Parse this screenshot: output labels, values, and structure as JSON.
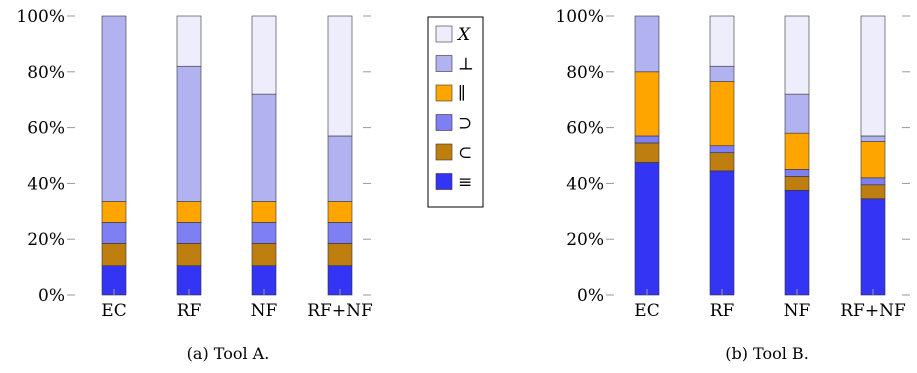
{
  "legend": {
    "items": [
      {
        "key": "X",
        "label": "X",
        "color": "#ededfb"
      },
      {
        "key": "perp",
        "label": "⊥",
        "color": "#b2b2f1"
      },
      {
        "key": "par",
        "label": "∥",
        "color": "#ffa500"
      },
      {
        "key": "sup",
        "label": "⊃",
        "color": "#7f7ff4"
      },
      {
        "key": "sub",
        "label": "⊂",
        "color": "#bf7f10"
      },
      {
        "key": "equiv",
        "label": "≡",
        "color": "#3434f5"
      }
    ]
  },
  "chart_data": [
    {
      "type": "bar",
      "stacked": true,
      "caption": "(a) Tool A.",
      "categories": [
        "EC",
        "RF",
        "NF",
        "RF+NF"
      ],
      "yticks": [
        "0%",
        "20%",
        "40%",
        "60%",
        "80%",
        "100%"
      ],
      "ylim": [
        0,
        100
      ],
      "series": [
        {
          "name": "≡",
          "values": [
            10.5,
            10.5,
            10.5,
            10.5
          ]
        },
        {
          "name": "⊂",
          "values": [
            8,
            8,
            8,
            8
          ]
        },
        {
          "name": "⊃",
          "values": [
            7.5,
            7.5,
            7.5,
            7.5
          ]
        },
        {
          "name": "∥",
          "values": [
            7.5,
            7.5,
            7.5,
            7.5
          ]
        },
        {
          "name": "⊥",
          "values": [
            66.5,
            48.5,
            38.5,
            23.5
          ]
        },
        {
          "name": "X",
          "values": [
            0,
            18,
            28,
            43
          ]
        }
      ]
    },
    {
      "type": "bar",
      "stacked": true,
      "caption": "(b) Tool B.",
      "categories": [
        "EC",
        "RF",
        "NF",
        "RF+NF"
      ],
      "yticks": [
        "0%",
        "20%",
        "40%",
        "60%",
        "80%",
        "100%"
      ],
      "ylim": [
        0,
        100
      ],
      "series": [
        {
          "name": "≡",
          "values": [
            47.5,
            44.5,
            37.5,
            34.5
          ]
        },
        {
          "name": "⊂",
          "values": [
            7,
            6.5,
            5,
            5
          ]
        },
        {
          "name": "⊃",
          "values": [
            2.5,
            2.5,
            2.5,
            2.5
          ]
        },
        {
          "name": "∥",
          "values": [
            23,
            23,
            13,
            13
          ]
        },
        {
          "name": "⊥",
          "values": [
            20,
            5.5,
            14,
            2
          ]
        },
        {
          "name": "X",
          "values": [
            0,
            18,
            28,
            43
          ]
        }
      ]
    }
  ]
}
